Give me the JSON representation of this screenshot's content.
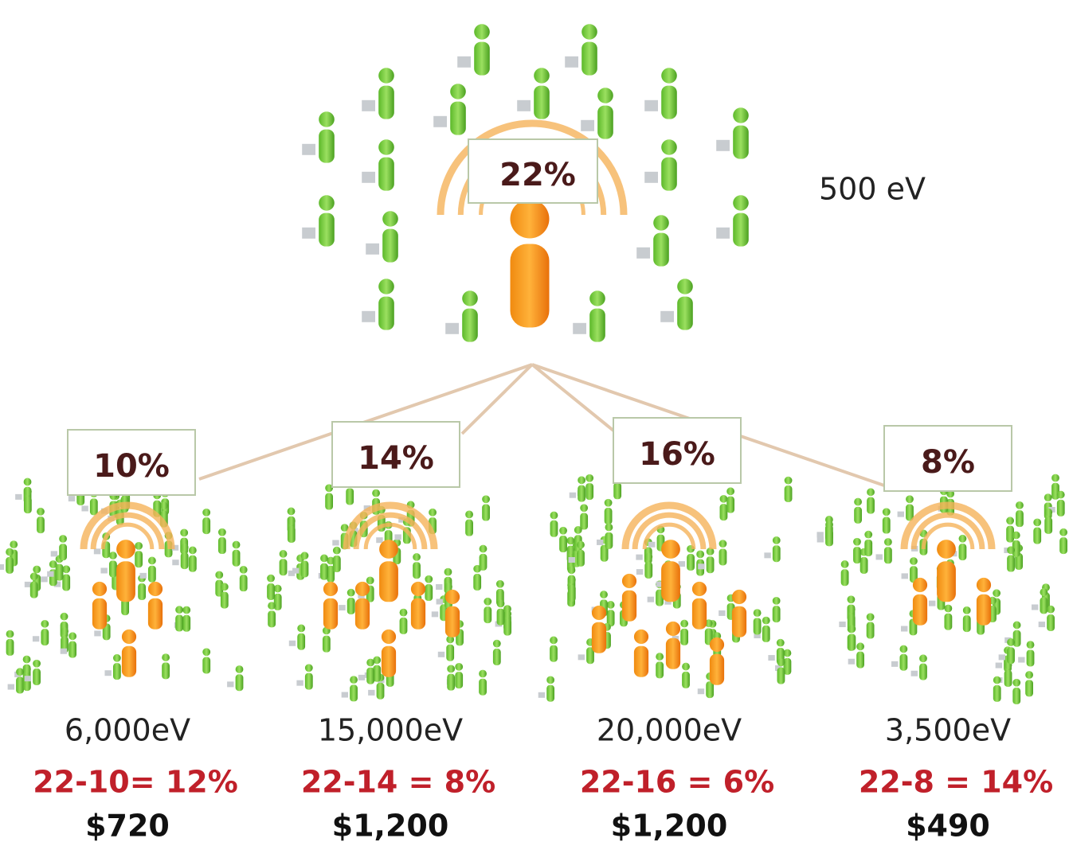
{
  "top": {
    "percent": "22%",
    "volume": "500 eV"
  },
  "nodes": [
    {
      "percent": "10%",
      "volume": "6,000eV",
      "calc": "22-10= 12%",
      "payout": "$720"
    },
    {
      "percent": "14%",
      "volume": "15,000eV",
      "calc": "22-14 = 8%",
      "payout": "$1,200"
    },
    {
      "percent": "16%",
      "volume": "20,000eV",
      "calc": "22-16 = 6%",
      "payout": "$1,200"
    },
    {
      "percent": "8%",
      "volume": "3,500eV",
      "calc": "22-8 = 14%",
      "payout": "$490"
    }
  ]
}
